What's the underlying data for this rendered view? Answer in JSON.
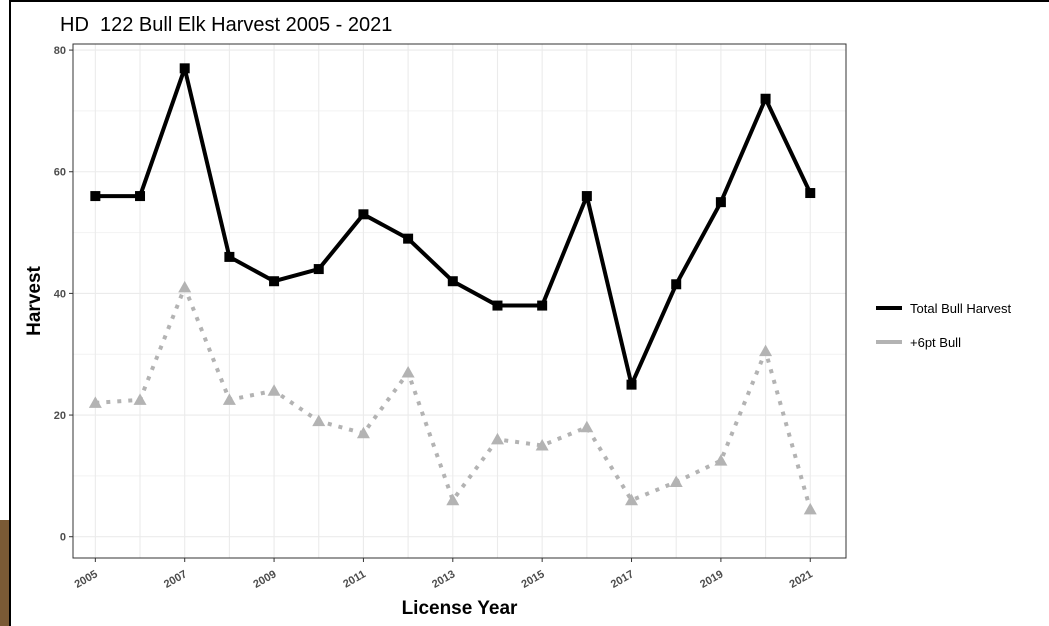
{
  "chart_data": {
    "type": "line",
    "title": "HD  122 Bull Elk Harvest 2005 - 2021",
    "xlabel": "License Year",
    "ylabel": "Harvest",
    "x": [
      2005,
      2006,
      2007,
      2008,
      2009,
      2010,
      2011,
      2012,
      2013,
      2014,
      2015,
      2016,
      2017,
      2018,
      2019,
      2020,
      2021
    ],
    "x_tick_labels": [
      "2005",
      "2007",
      "2009",
      "2011",
      "2013",
      "2015",
      "2017",
      "2019",
      "2021"
    ],
    "xlim": [
      2004.5,
      2021.8
    ],
    "ylim": [
      -3.5,
      81
    ],
    "y_ticks": [
      0,
      20,
      40,
      60,
      80
    ],
    "grid": true,
    "legend_position": "right",
    "series": [
      {
        "name": "Total Bull Harvest",
        "color": "#000000",
        "marker": "square",
        "line_style": "solid",
        "values": [
          56,
          56,
          77,
          46,
          42,
          44,
          53,
          49,
          42,
          38,
          38,
          56,
          25,
          41.5,
          55,
          72,
          56.5
        ]
      },
      {
        "name": "+6pt Bull",
        "color": "#b3b3b3",
        "marker": "triangle",
        "line_style": "dotted",
        "values": [
          22,
          22.5,
          41,
          22.5,
          24,
          19,
          17,
          27,
          6,
          16,
          15,
          18,
          6,
          9,
          12.5,
          30.5,
          4.5
        ]
      }
    ]
  }
}
